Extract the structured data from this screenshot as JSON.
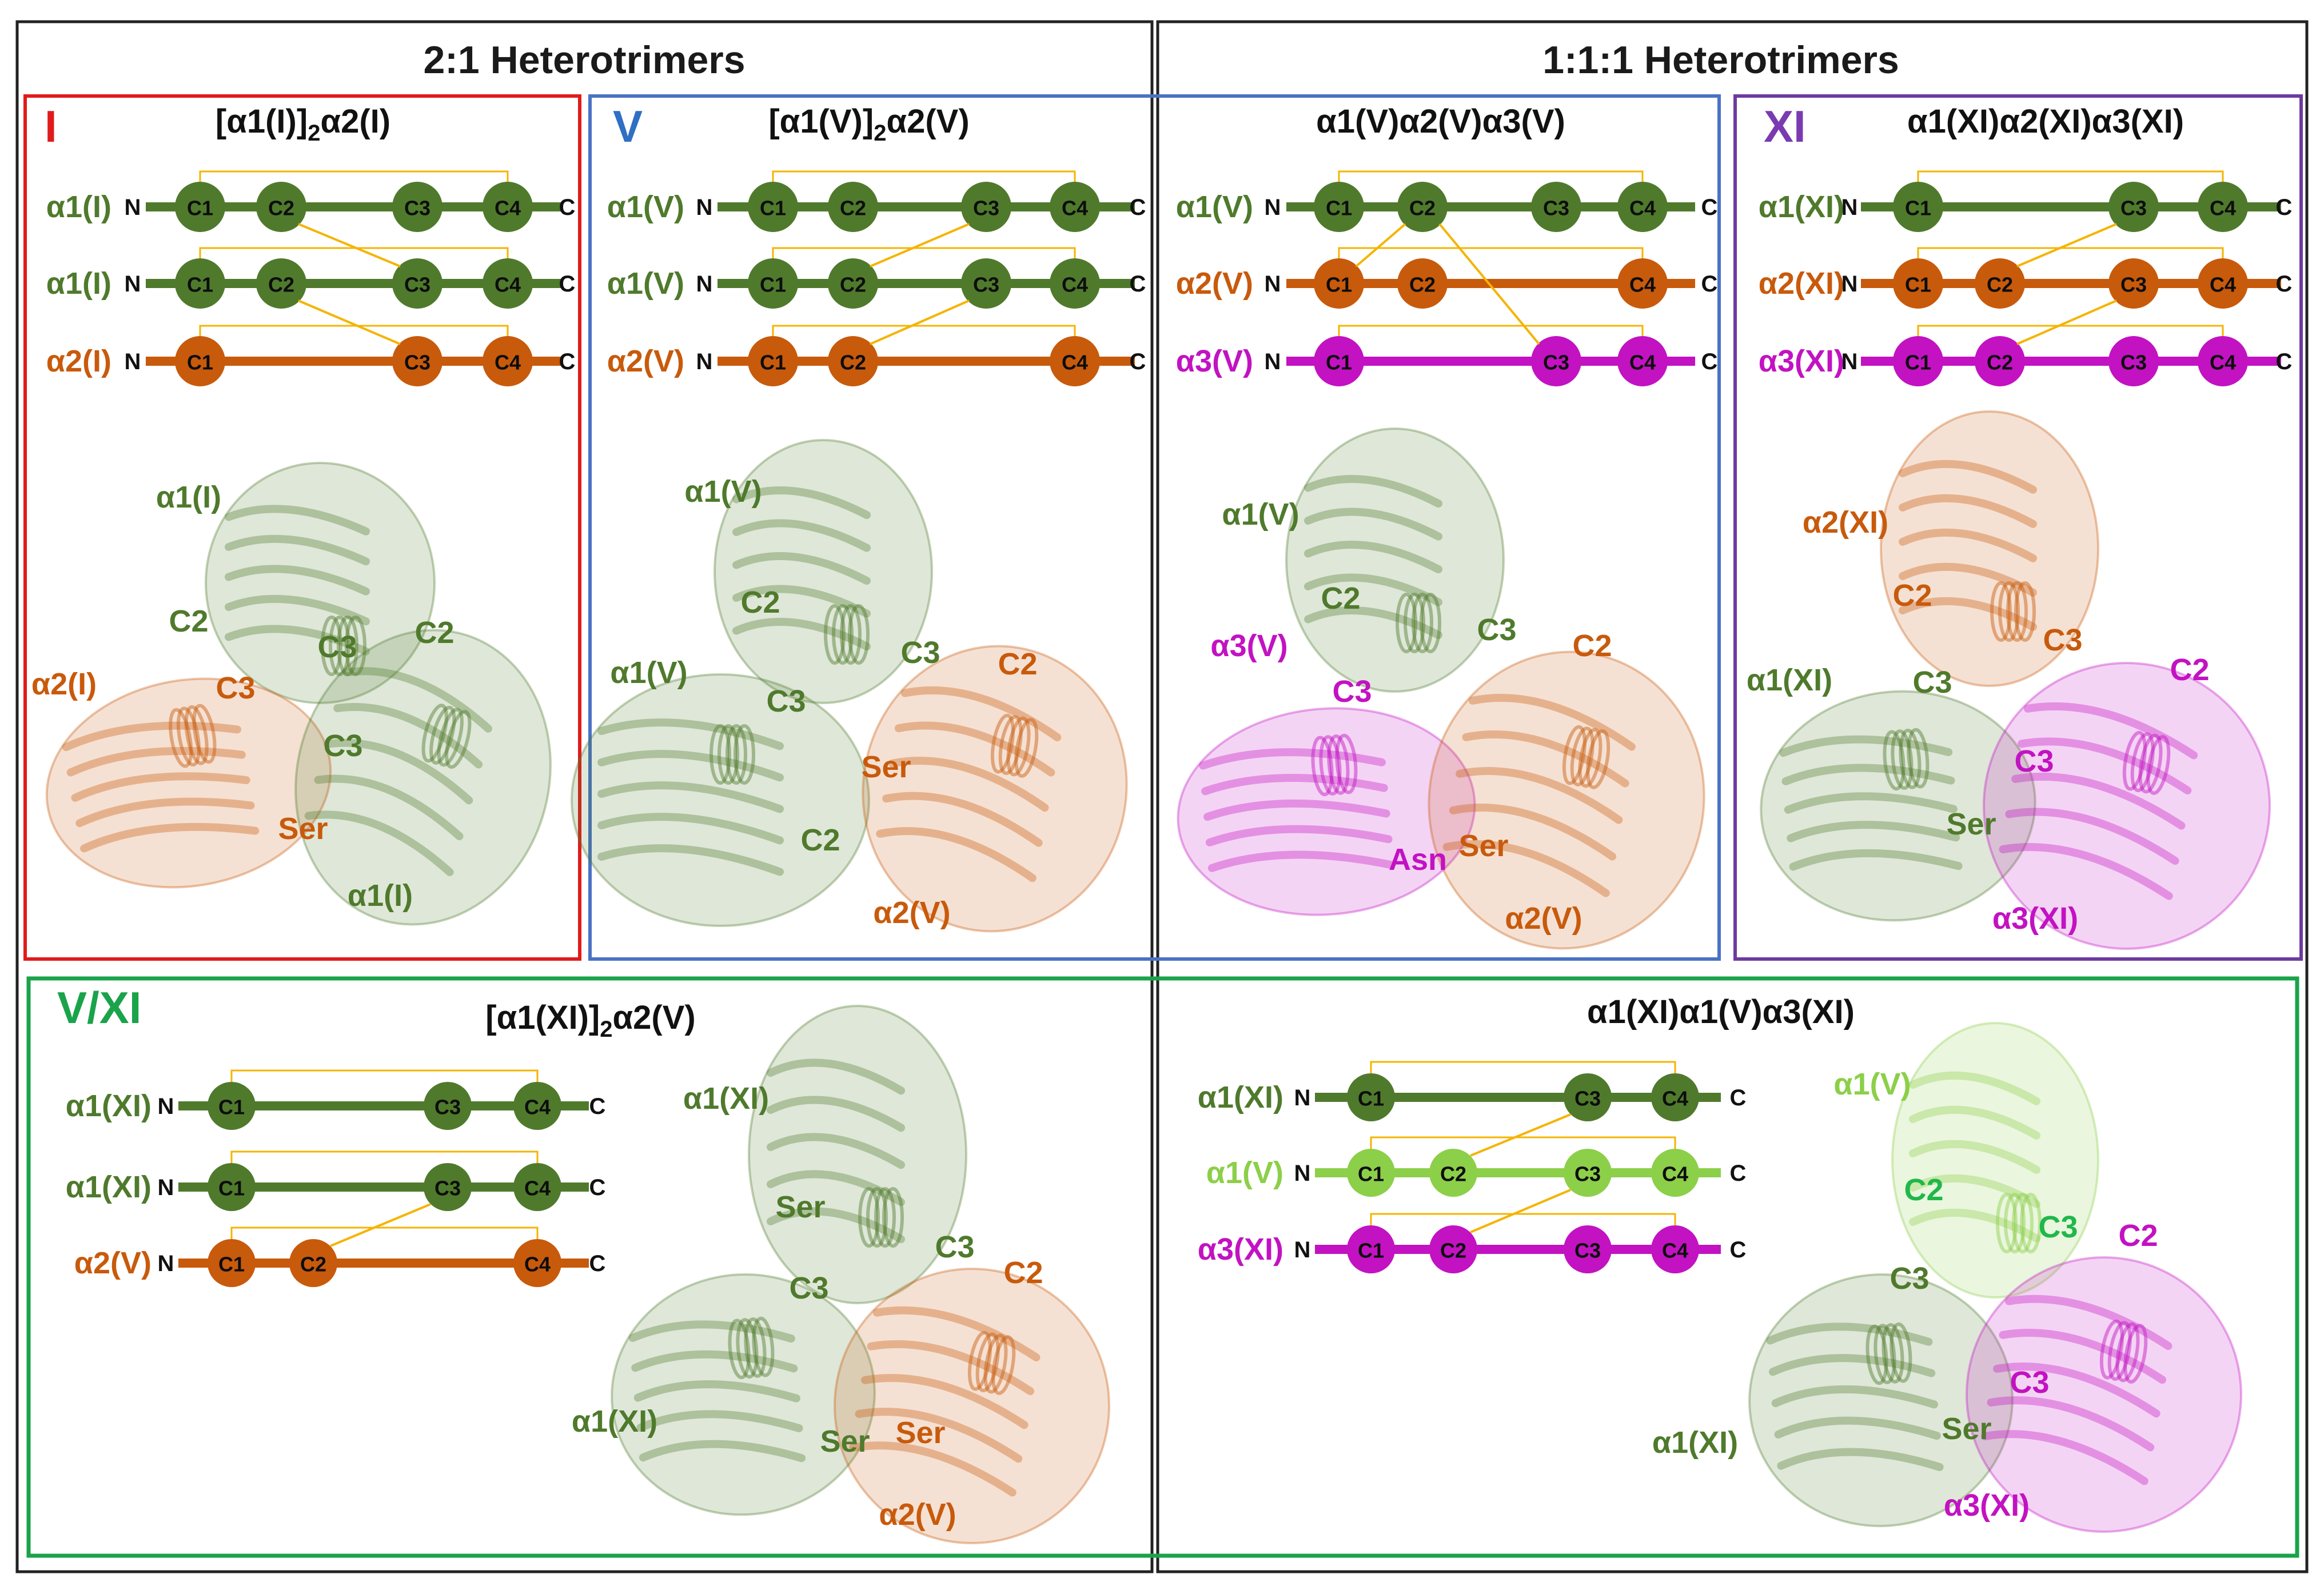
{
  "colors": {
    "green": "#4f7a2c",
    "orange": "#c85a0c",
    "magenta": "#c212c2",
    "lightgreen": "#8ccf49",
    "bright_green": "#1fb84a",
    "link": "#f5b400",
    "red_box": "#e01b1b",
    "blue_box": "#4a72c4",
    "purple_box": "#6e3aa0",
    "green_box": "#1aa34a",
    "blue_text": "#2f6fc4",
    "purple_text": "#7a3ab0"
  },
  "headers": {
    "left": "2:1 Heterotrimers",
    "right": "1:1:1 Heterotrimers"
  },
  "panels": [
    {
      "id": "I",
      "roman": "I",
      "roman_color": "#e01b1b",
      "title_pre": "[α1(I)]",
      "title_sub": "2",
      "title_post": "α2(I)",
      "chains": [
        {
          "label": "α1(I)",
          "color": "green",
          "domains": [
            "C1",
            "C2",
            "C3",
            "C4"
          ]
        },
        {
          "label": "α1(I)",
          "color": "green",
          "domains": [
            "C1",
            "C2",
            "C3",
            "C4"
          ]
        },
        {
          "label": "α2(I)",
          "color": "orange",
          "domains": [
            "C1",
            "C3",
            "C4"
          ]
        }
      ],
      "structure_labels": [
        {
          "text": "α1(I)",
          "color": "green"
        },
        {
          "text": "C2",
          "color": "green"
        },
        {
          "text": "C3",
          "color": "green"
        },
        {
          "text": "C2",
          "color": "green"
        },
        {
          "text": "α2(I)",
          "color": "orange"
        },
        {
          "text": "C3",
          "color": "orange"
        },
        {
          "text": "C3",
          "color": "green"
        },
        {
          "text": "Ser",
          "color": "orange"
        },
        {
          "text": "α1(I)",
          "color": "green"
        }
      ]
    },
    {
      "id": "V",
      "roman": "V",
      "roman_color": "#2f6fc4",
      "title_pre": "[α1(V)]",
      "title_sub": "2",
      "title_post": "α2(V)",
      "chains": [
        {
          "label": "α1(V)",
          "color": "green",
          "domains": [
            "C1",
            "C2",
            "C3",
            "C4"
          ]
        },
        {
          "label": "α1(V)",
          "color": "green",
          "domains": [
            "C1",
            "C2",
            "C3",
            "C4"
          ]
        },
        {
          "label": "α2(V)",
          "color": "orange",
          "domains": [
            "C1",
            "C2",
            "C4"
          ]
        }
      ],
      "structure_labels": [
        {
          "text": "α1(V)",
          "color": "green"
        },
        {
          "text": "C2",
          "color": "green"
        },
        {
          "text": "α1(V)",
          "color": "green"
        },
        {
          "text": "C3",
          "color": "green"
        },
        {
          "text": "C3",
          "color": "green"
        },
        {
          "text": "C2",
          "color": "orange"
        },
        {
          "text": "Ser",
          "color": "orange"
        },
        {
          "text": "C2",
          "color": "green"
        },
        {
          "text": "α2(V)",
          "color": "orange"
        }
      ]
    },
    {
      "id": "V3",
      "roman": "",
      "roman_color": "#2f6fc4",
      "title_pre": "α1(V)α2(V)α3(V)",
      "title_sub": "",
      "title_post": "",
      "chains": [
        {
          "label": "α1(V)",
          "color": "green",
          "domains": [
            "C1",
            "C2",
            "C3",
            "C4"
          ]
        },
        {
          "label": "α2(V)",
          "color": "orange",
          "domains": [
            "C1",
            "C2",
            "C4"
          ]
        },
        {
          "label": "α3(V)",
          "color": "magenta",
          "domains": [
            "C1",
            "C3",
            "C4"
          ]
        }
      ],
      "structure_labels": [
        {
          "text": "α1(V)",
          "color": "green"
        },
        {
          "text": "C2",
          "color": "green"
        },
        {
          "text": "α3(V)",
          "color": "magenta"
        },
        {
          "text": "C3",
          "color": "magenta"
        },
        {
          "text": "C3",
          "color": "green"
        },
        {
          "text": "C2",
          "color": "orange"
        },
        {
          "text": "Ser",
          "color": "orange"
        },
        {
          "text": "Asn",
          "color": "magenta"
        },
        {
          "text": "α2(V)",
          "color": "orange"
        }
      ]
    },
    {
      "id": "XI",
      "roman": "XI",
      "roman_color": "#7a3ab0",
      "title_pre": "α1(XI)α2(XI)α3(XI)",
      "title_sub": "",
      "title_post": "",
      "chains": [
        {
          "label": "α1(XI)",
          "color": "green",
          "domains": [
            "C1",
            "C3",
            "C4"
          ]
        },
        {
          "label": "α2(XI)",
          "color": "orange",
          "domains": [
            "C1",
            "C2",
            "C3",
            "C4"
          ]
        },
        {
          "label": "α3(XI)",
          "color": "magenta",
          "domains": [
            "C1",
            "C2",
            "C3",
            "C4"
          ]
        }
      ],
      "structure_labels": [
        {
          "text": "α2(XI)",
          "color": "orange"
        },
        {
          "text": "C2",
          "color": "orange"
        },
        {
          "text": "C3",
          "color": "orange"
        },
        {
          "text": "C2",
          "color": "magenta"
        },
        {
          "text": "α1(XI)",
          "color": "green"
        },
        {
          "text": "C3",
          "color": "green"
        },
        {
          "text": "C3",
          "color": "magenta"
        },
        {
          "text": "Ser",
          "color": "green"
        },
        {
          "text": "α3(XI)",
          "color": "magenta"
        }
      ]
    },
    {
      "id": "VXI_a",
      "roman": "V/XI",
      "roman_color": "#1aa34a",
      "title_pre": "[α1(XI)]",
      "title_sub": "2",
      "title_post": "α2(V)",
      "chains": [
        {
          "label": "α1(XI)",
          "color": "green",
          "domains": [
            "C1",
            "C3",
            "C4"
          ]
        },
        {
          "label": "α1(XI)",
          "color": "green",
          "domains": [
            "C1",
            "C3",
            "C4"
          ]
        },
        {
          "label": "α2(V)",
          "color": "orange",
          "domains": [
            "C1",
            "C2",
            "C4"
          ]
        }
      ],
      "structure_labels": [
        {
          "text": "α1(XI)",
          "color": "green"
        },
        {
          "text": "Ser",
          "color": "green"
        },
        {
          "text": "C3",
          "color": "green"
        },
        {
          "text": "C3",
          "color": "green"
        },
        {
          "text": "C2",
          "color": "orange"
        },
        {
          "text": "α1(XI)",
          "color": "green"
        },
        {
          "text": "Ser",
          "color": "green"
        },
        {
          "text": "Ser",
          "color": "orange"
        },
        {
          "text": "α2(V)",
          "color": "orange"
        }
      ]
    },
    {
      "id": "VXI_b",
      "roman": "",
      "roman_color": "#1aa34a",
      "title_pre": "α1(XI)α1(V)α3(XI)",
      "title_sub": "",
      "title_post": "",
      "chains": [
        {
          "label": "α1(XI)",
          "color": "green",
          "domains": [
            "C1",
            "C3",
            "C4"
          ]
        },
        {
          "label": "α1(V)",
          "color": "lightgreen",
          "domains": [
            "C1",
            "C2",
            "C3",
            "C4"
          ]
        },
        {
          "label": "α3(XI)",
          "color": "magenta",
          "domains": [
            "C1",
            "C2",
            "C3",
            "C4"
          ]
        }
      ],
      "structure_labels": [
        {
          "text": "α1(V)",
          "color": "lightgreen"
        },
        {
          "text": "C2",
          "color": "bright_green"
        },
        {
          "text": "C3",
          "color": "bright_green"
        },
        {
          "text": "C2",
          "color": "magenta"
        },
        {
          "text": "C3",
          "color": "green"
        },
        {
          "text": "C3",
          "color": "magenta"
        },
        {
          "text": "Ser",
          "color": "green"
        },
        {
          "text": "α1(XI)",
          "color": "green"
        },
        {
          "text": "α3(XI)",
          "color": "magenta"
        }
      ]
    }
  ],
  "terminal": {
    "n": "N",
    "c": "C"
  }
}
